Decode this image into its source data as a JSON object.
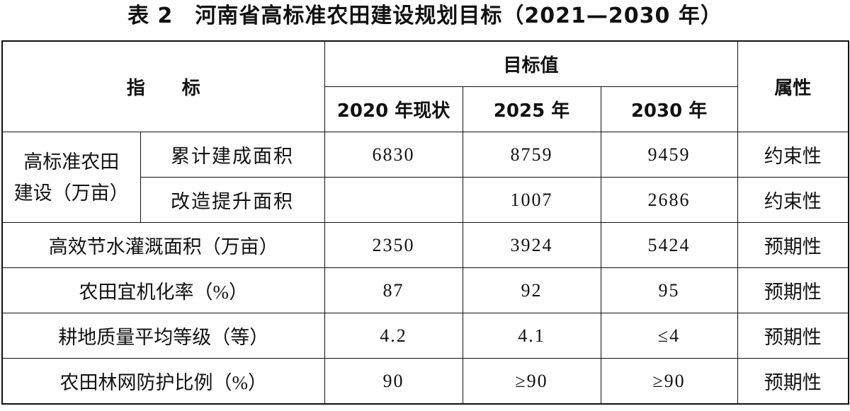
{
  "title": "表 2　河南省高标准农田建设规划目标（2021—2030 年）",
  "table": {
    "header": {
      "indicator": "指　　标",
      "target": "目标值",
      "attribute": "属性",
      "years": [
        "2020 年现状",
        "2025 年",
        "2030 年"
      ]
    },
    "group": {
      "lines": [
        "高标准农田",
        "建设（万亩）"
      ],
      "rows": [
        {
          "indicator": "累计建成面积",
          "values": [
            6830,
            8759,
            9459
          ],
          "attribute": "约束性"
        },
        {
          "indicator": "改造提升面积",
          "values": [
            null,
            1007,
            2686
          ],
          "attribute": "约束性"
        }
      ]
    },
    "rows": [
      {
        "indicator": "高效节水灌溉面积（万亩）",
        "values": [
          2350,
          3924,
          5424
        ],
        "attribute": "预期性"
      },
      {
        "indicator": "农田宜机化率（%）",
        "values": [
          87,
          92,
          95
        ],
        "attribute": "预期性"
      },
      {
        "indicator": "耕地质量平均等级（等）",
        "values": [
          4.2,
          4.1,
          "≤4"
        ],
        "attribute": "预期性"
      },
      {
        "indicator": "农田林网防护比例（%）",
        "values": [
          90,
          "≥90",
          "≥90"
        ],
        "attribute": "预期性"
      }
    ]
  }
}
